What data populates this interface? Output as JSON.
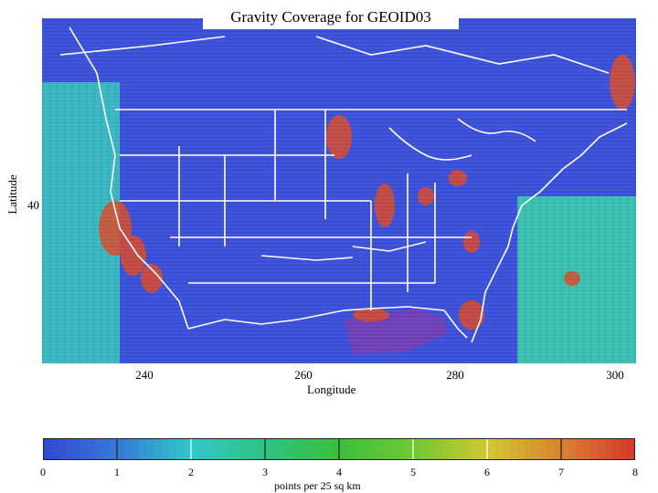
{
  "title": "Gravity Coverage for GEOID03",
  "axes": {
    "xlabel": "Longitude",
    "ylabel": "Latitude",
    "xticks": [
      "240",
      "260",
      "280",
      "300"
    ],
    "yticks": [
      "40"
    ],
    "xlim": [
      227,
      303
    ],
    "ylim": [
      19,
      58
    ]
  },
  "colorbar": {
    "label": "points per 25 sq km",
    "ticks": [
      "0",
      "1",
      "2",
      "3",
      "4",
      "5",
      "6",
      "7",
      "8"
    ],
    "range": [
      0,
      8
    ]
  },
  "colors": {
    "background_low": "#3a4fd8",
    "ocean_mid": "#34c4b4",
    "high": "#d84a2a",
    "boundaries": "#ffffff"
  }
}
